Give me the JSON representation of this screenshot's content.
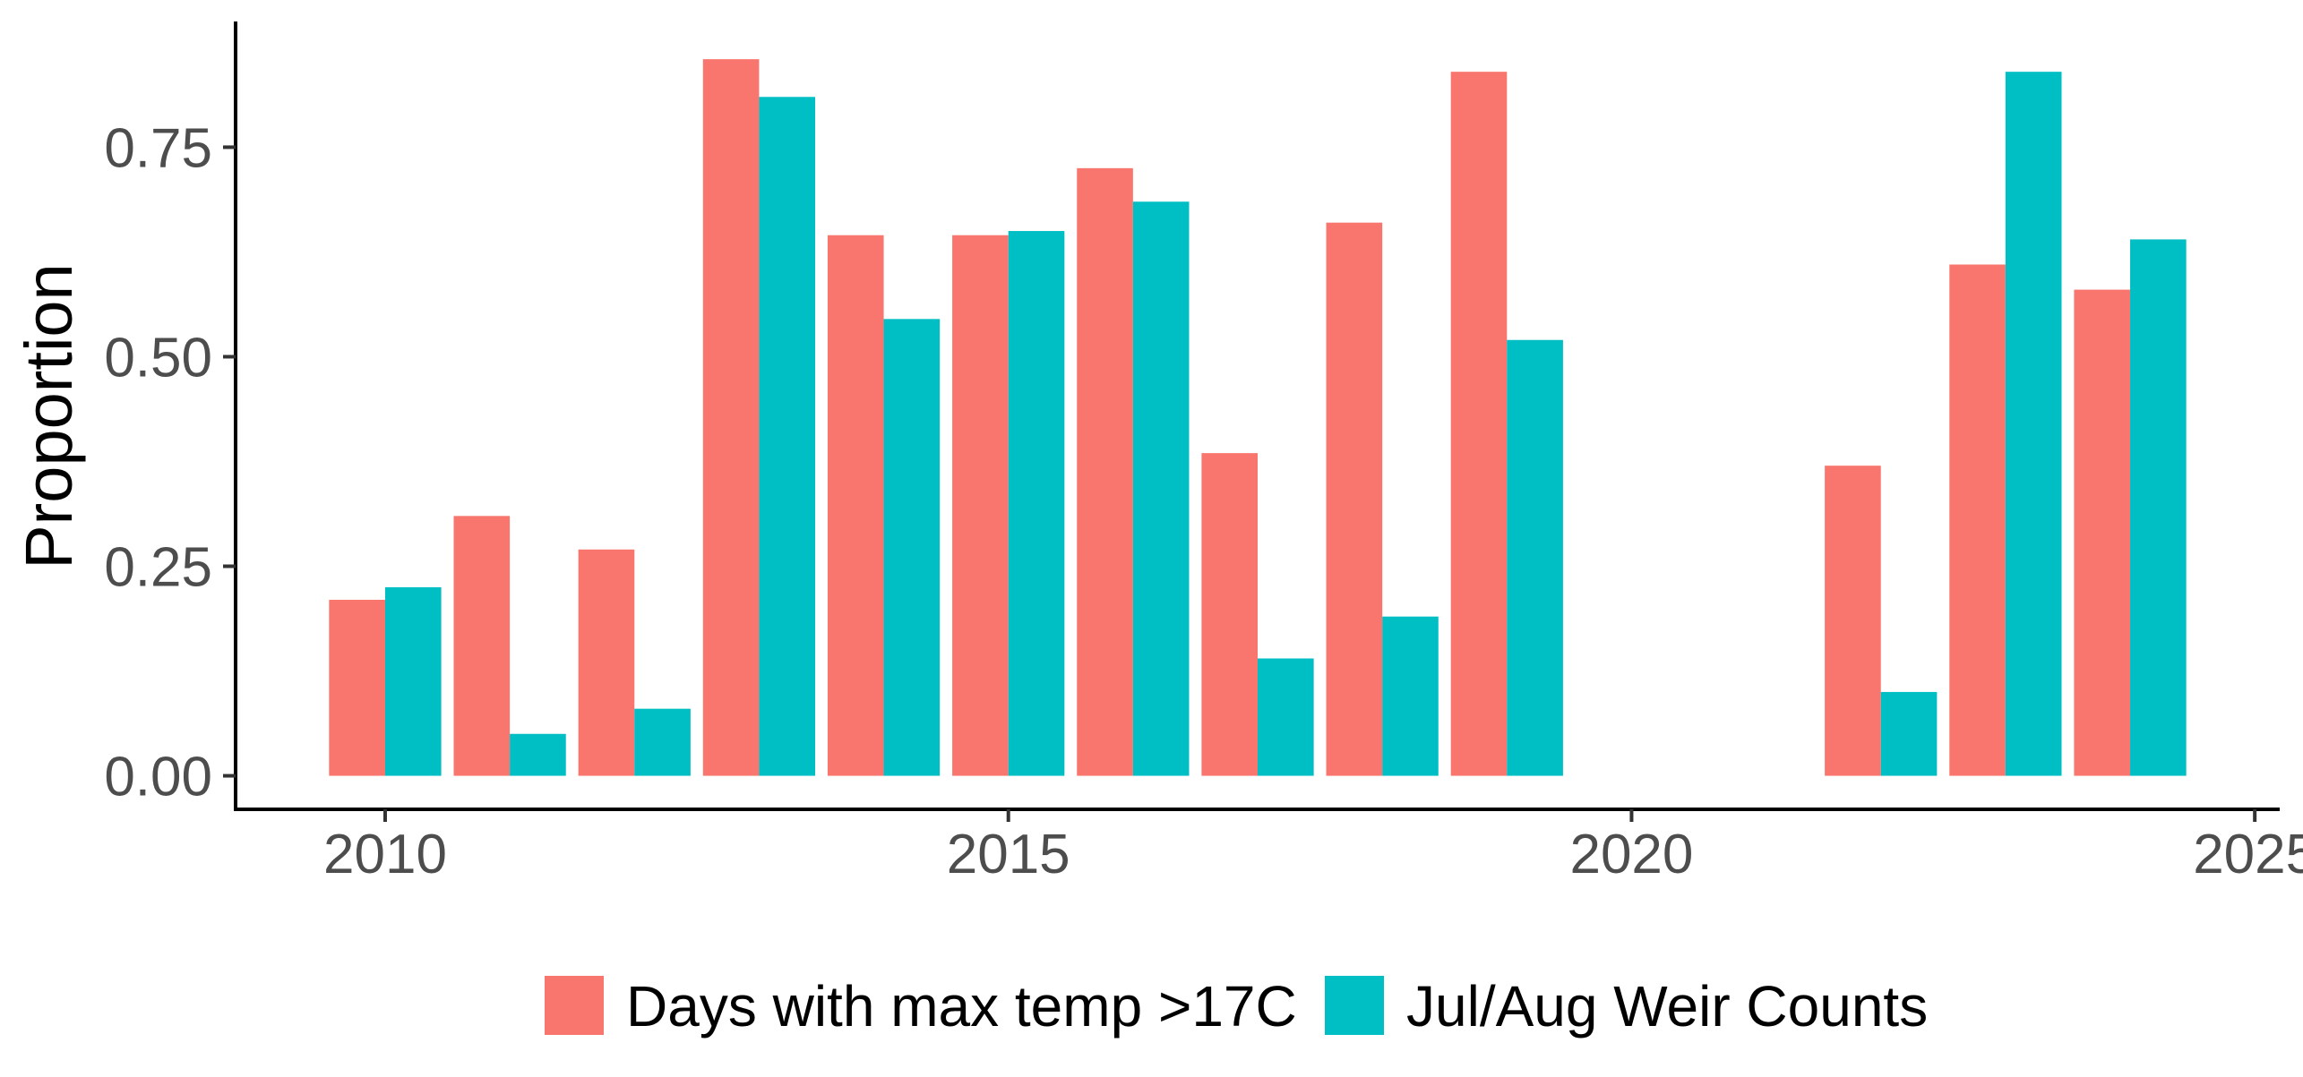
{
  "chart_data": {
    "type": "bar",
    "title": "",
    "xlabel": "",
    "ylabel": "Proportion",
    "x": [
      2010,
      2011,
      2012,
      2013,
      2014,
      2015,
      2016,
      2017,
      2018,
      2019,
      2020,
      2021,
      2022,
      2023,
      2024
    ],
    "series": [
      {
        "name": "Days with max temp >17C",
        "color": "#F8766D",
        "values": [
          0.21,
          0.31,
          0.27,
          0.855,
          0.645,
          0.645,
          0.725,
          0.385,
          0.66,
          0.84,
          null,
          null,
          0.37,
          0.61,
          0.58
        ]
      },
      {
        "name": "Jul/Aug Weir Counts",
        "color": "#00BFC4",
        "values": [
          0.225,
          0.05,
          0.08,
          0.81,
          0.545,
          0.65,
          0.685,
          0.14,
          0.19,
          0.52,
          null,
          null,
          0.1,
          0.84,
          0.64
        ]
      }
    ],
    "xticks": [
      {
        "value": 2010,
        "label": "2010"
      },
      {
        "value": 2015,
        "label": "2015"
      },
      {
        "value": 2020,
        "label": "2020"
      },
      {
        "value": 2025,
        "label": "2025"
      }
    ],
    "yticks": [
      {
        "value": 0,
        "label": "0.00"
      },
      {
        "value": 0.25,
        "label": "0.25"
      },
      {
        "value": 0.5,
        "label": "0.50"
      },
      {
        "value": 0.75,
        "label": "0.75"
      }
    ],
    "xlim": [
      2008.8,
      2025.2
    ],
    "ylim": [
      -0.04,
      0.9
    ],
    "grid": false,
    "legend_position": "bottom"
  }
}
